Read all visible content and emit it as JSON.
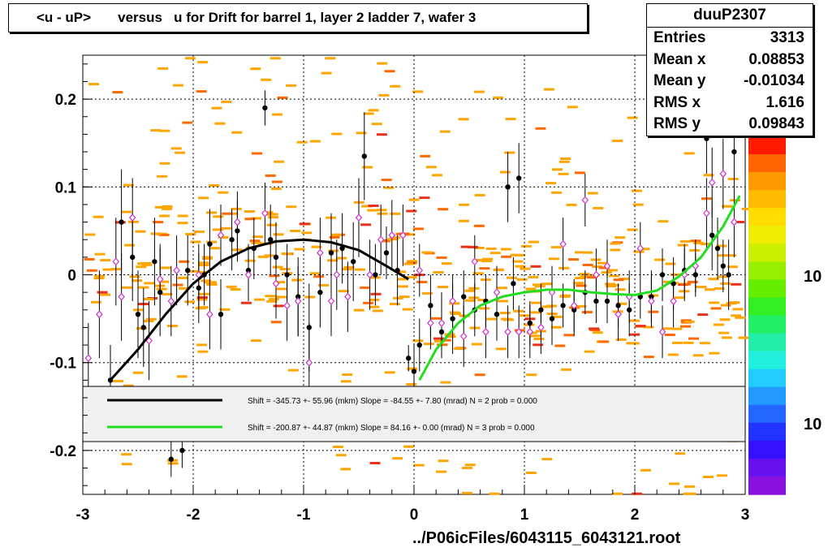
{
  "title": "<u - uP>       versus   u for Drift for barrel 1, layer 2 ladder 7, wafer 3",
  "stats": {
    "name": "duuP2307",
    "rows": [
      {
        "label": "Entries",
        "value": "3313"
      },
      {
        "label": "Mean x",
        "value": "0.08853"
      },
      {
        "label": "Mean y",
        "value": "-0.01034"
      },
      {
        "label": "RMS x",
        "value": "1.616"
      },
      {
        "label": "RMS y",
        "value": "0.09843"
      }
    ]
  },
  "footer": "../P06icFiles/6043115_6043121.root",
  "palette_labels": [
    "10",
    "10"
  ],
  "legend": [
    {
      "color": "#000000",
      "text": "Shift =  -345.73 +-  55.96 (mkm) Slope =   -84.55 +-  7.80 (mrad)  N = 2 prob = 0.000"
    },
    {
      "color": "#22dd22",
      "text": "Shift =  -200.87 +-  44.87 (mkm) Slope =    84.16 +-  0.00 (mrad)  N = 3 prob = 0.000"
    }
  ],
  "chart_data": {
    "type": "scatter",
    "xlim": [
      -3,
      3
    ],
    "ylim": [
      -0.25,
      0.25
    ],
    "xticks": [
      "-3",
      "-2",
      "-1",
      "0",
      "1",
      "2",
      "3"
    ],
    "yticks": [
      "-0.2",
      "-0.1",
      "0",
      "0.1",
      "0.2"
    ],
    "grid": true,
    "series": [
      {
        "style": "black-profile-points",
        "x": [
          -2.75,
          -2.65,
          -2.55,
          -2.5,
          -2.45,
          -2.35,
          -2.3,
          -2.2,
          -2.1,
          -2.05,
          -1.95,
          -1.9,
          -1.85,
          -1.75,
          -1.65,
          -1.6,
          -1.5,
          -1.45,
          -1.35,
          -1.3,
          -1.25,
          -1.15,
          -1.05,
          -0.95,
          -0.85,
          -0.75,
          -0.65,
          -0.55,
          -0.45,
          -0.35,
          -0.25,
          -0.15,
          -0.05,
          0.0,
          0.05,
          0.15,
          0.25,
          0.35,
          0.45,
          0.55,
          0.65,
          0.75,
          0.85,
          0.9,
          0.95,
          1.05,
          1.15,
          1.25,
          1.35,
          1.45,
          1.55,
          1.65,
          1.75,
          1.85,
          1.95,
          2.05,
          2.15,
          2.25,
          2.35,
          2.45,
          2.55,
          2.65,
          2.7,
          2.75,
          2.8,
          2.85,
          2.9
        ],
        "y": [
          -0.12,
          0.06,
          0.02,
          -0.045,
          -0.06,
          0.015,
          -0.02,
          -0.21,
          -0.2,
          0.005,
          -0.015,
          0.0,
          0.035,
          -0.045,
          0.04,
          0.05,
          0.005,
          0.03,
          0.19,
          0.04,
          0.02,
          0.0,
          -0.025,
          -0.06,
          -0.02,
          0.025,
          0.03,
          0.015,
          0.135,
          0.0,
          0.025,
          0.005,
          -0.095,
          -0.11,
          -0.08,
          -0.035,
          -0.065,
          -0.05,
          -0.025,
          -0.04,
          -0.03,
          -0.045,
          0.1,
          -0.01,
          0.11,
          -0.055,
          -0.04,
          -0.05,
          -0.035,
          -0.04,
          -0.02,
          -0.03,
          -0.03,
          -0.035,
          -0.04,
          -0.025,
          -0.025,
          0.0,
          -0.01,
          0.005,
          0.0,
          0.155,
          0.045,
          0.03,
          0.01,
          0.0,
          0.14
        ],
        "yerr": [
          0.04,
          0.06,
          0.05,
          0.05,
          0.045,
          0.05,
          0.05,
          0.02,
          0.02,
          0.04,
          0.04,
          0.035,
          0.04,
          0.04,
          0.035,
          0.035,
          0.03,
          0.035,
          0.02,
          0.04,
          0.04,
          0.035,
          0.045,
          0.05,
          0.04,
          0.045,
          0.04,
          0.045,
          0.05,
          0.035,
          0.03,
          0.04,
          0.015,
          0.03,
          0.03,
          0.035,
          0.03,
          0.04,
          0.03,
          0.03,
          0.03,
          0.03,
          0.04,
          0.03,
          0.04,
          0.025,
          0.03,
          0.03,
          0.025,
          0.03,
          0.025,
          0.025,
          0.025,
          0.025,
          0.03,
          0.025,
          0.03,
          0.03,
          0.03,
          0.03,
          0.025,
          0.04,
          0.04,
          0.035,
          0.03,
          0.04,
          0.04
        ]
      },
      {
        "style": "magenta-open-diamonds",
        "x": [
          -2.95,
          -2.85,
          -2.7,
          -2.65,
          -2.55,
          -2.4,
          -2.3,
          -2.2,
          -2.15,
          -1.95,
          -1.85,
          -1.75,
          -1.6,
          -1.5,
          -1.35,
          -1.25,
          -1.15,
          -1.05,
          -0.95,
          -0.85,
          -0.75,
          -0.7,
          -0.6,
          -0.5,
          -0.4,
          -0.3,
          -0.2,
          -0.1,
          0.05,
          0.15,
          0.25,
          0.35,
          0.45,
          0.55,
          0.65,
          0.75,
          0.85,
          0.95,
          1.05,
          1.15,
          1.25,
          1.35,
          1.45,
          1.55,
          1.65,
          1.75,
          1.85,
          1.95,
          2.05,
          2.15,
          2.25,
          2.35,
          2.45,
          2.55,
          2.65,
          2.7,
          2.8,
          2.9
        ],
        "y": [
          -0.095,
          -0.045,
          0.015,
          -0.025,
          0.065,
          -0.075,
          -0.005,
          -0.03,
          0.005,
          0.0,
          -0.045,
          0.045,
          0.06,
          0.0,
          0.07,
          -0.01,
          -0.035,
          -0.03,
          -0.1,
          0.025,
          -0.03,
          0.0,
          -0.025,
          0.065,
          0.0,
          0.04,
          0.045,
          0.045,
          0.005,
          -0.055,
          -0.055,
          -0.03,
          -0.07,
          0.015,
          -0.065,
          -0.02,
          -0.065,
          -0.065,
          -0.065,
          -0.06,
          -0.02,
          0.035,
          -0.035,
          0.085,
          0.0,
          0.01,
          -0.045,
          -0.025,
          0.03,
          -0.03,
          -0.065,
          -0.03,
          0.0,
          0.01,
          0.07,
          0.105,
          0.115,
          0.06
        ],
        "yerr": [
          0.04,
          0.05,
          0.05,
          0.05,
          0.045,
          0.045,
          0.04,
          0.04,
          0.04,
          0.035,
          0.04,
          0.035,
          0.035,
          0.03,
          0.035,
          0.04,
          0.04,
          0.04,
          0.045,
          0.04,
          0.04,
          0.04,
          0.04,
          0.045,
          0.04,
          0.04,
          0.04,
          0.035,
          0.03,
          0.03,
          0.035,
          0.03,
          0.035,
          0.03,
          0.03,
          0.03,
          0.03,
          0.03,
          0.03,
          0.03,
          0.03,
          0.03,
          0.03,
          0.03,
          0.03,
          0.03,
          0.03,
          0.03,
          0.03,
          0.03,
          0.03,
          0.03,
          0.03,
          0.03,
          0.04,
          0.04,
          0.04,
          0.04
        ]
      },
      {
        "style": "black-fit-curve",
        "x": [
          -2.75,
          -2.5,
          -2.25,
          -2.0,
          -1.75,
          -1.5,
          -1.25,
          -1.0,
          -0.75,
          -0.5,
          -0.25,
          -0.05
        ],
        "y": [
          -0.12,
          -0.085,
          -0.045,
          -0.01,
          0.015,
          0.03,
          0.038,
          0.04,
          0.037,
          0.028,
          0.01,
          -0.005
        ]
      },
      {
        "style": "green-fit-curve",
        "x": [
          0.05,
          0.2,
          0.4,
          0.6,
          0.8,
          1.0,
          1.2,
          1.4,
          1.6,
          1.8,
          2.0,
          2.2,
          2.4,
          2.6,
          2.8,
          2.95
        ],
        "y": [
          -0.12,
          -0.085,
          -0.055,
          -0.035,
          -0.025,
          -0.02,
          -0.017,
          -0.017,
          -0.02,
          -0.022,
          -0.023,
          -0.018,
          -0.002,
          0.02,
          0.055,
          0.09
        ]
      }
    ]
  }
}
